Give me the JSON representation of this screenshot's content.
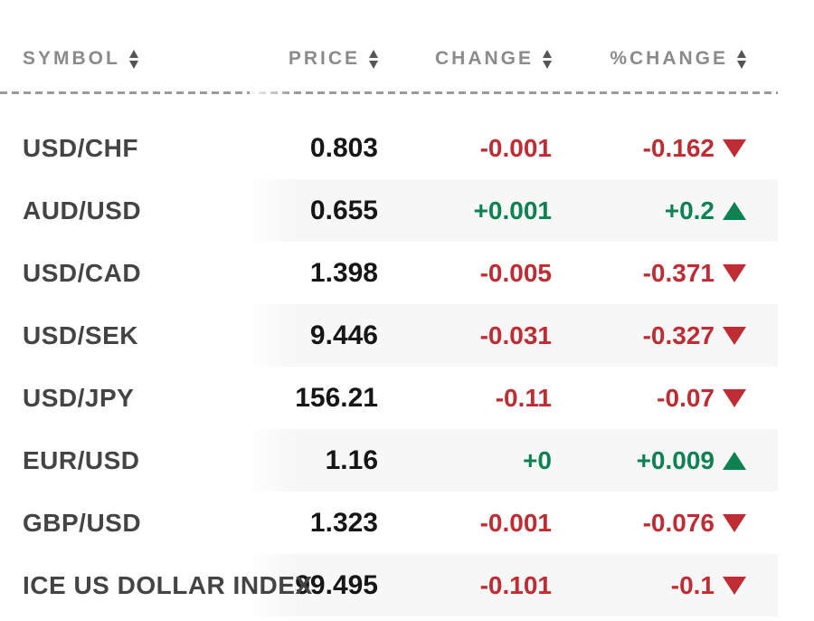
{
  "table": {
    "columns": [
      {
        "key": "symbol",
        "label": "SYMBOL"
      },
      {
        "key": "price",
        "label": "PRICE"
      },
      {
        "key": "change",
        "label": "CHANGE"
      },
      {
        "key": "pct_change",
        "label": "%CHANGE"
      }
    ],
    "rows": [
      {
        "symbol": "USD/CHF",
        "price": "0.803",
        "change": "-0.001",
        "pct_change": "-0.162",
        "direction": "down"
      },
      {
        "symbol": "AUD/USD",
        "price": "0.655",
        "change": "+0.001",
        "pct_change": "+0.2",
        "direction": "up"
      },
      {
        "symbol": "USD/CAD",
        "price": "1.398",
        "change": "-0.005",
        "pct_change": "-0.371",
        "direction": "down"
      },
      {
        "symbol": "USD/SEK",
        "price": "9.446",
        "change": "-0.031",
        "pct_change": "-0.327",
        "direction": "down"
      },
      {
        "symbol": "USD/JPY",
        "price": "156.21",
        "change": "-0.11",
        "pct_change": "-0.07",
        "direction": "down"
      },
      {
        "symbol": "EUR/USD",
        "price": "1.16",
        "change": "+0",
        "pct_change": "+0.009",
        "direction": "up"
      },
      {
        "symbol": "GBP/USD",
        "price": "1.323",
        "change": "-0.001",
        "pct_change": "-0.076",
        "direction": "down"
      },
      {
        "symbol": "ICE US DOLLAR INDEX",
        "price": "99.495",
        "change": "-0.101",
        "pct_change": "-0.1",
        "direction": "down"
      }
    ],
    "colors": {
      "positive": "#0e8152",
      "negative": "#bf2c33",
      "row_stripe": "#f7f7f7",
      "header_text": "#8b8b8b",
      "symbol_text": "#444444",
      "price_text": "#161616"
    }
  }
}
